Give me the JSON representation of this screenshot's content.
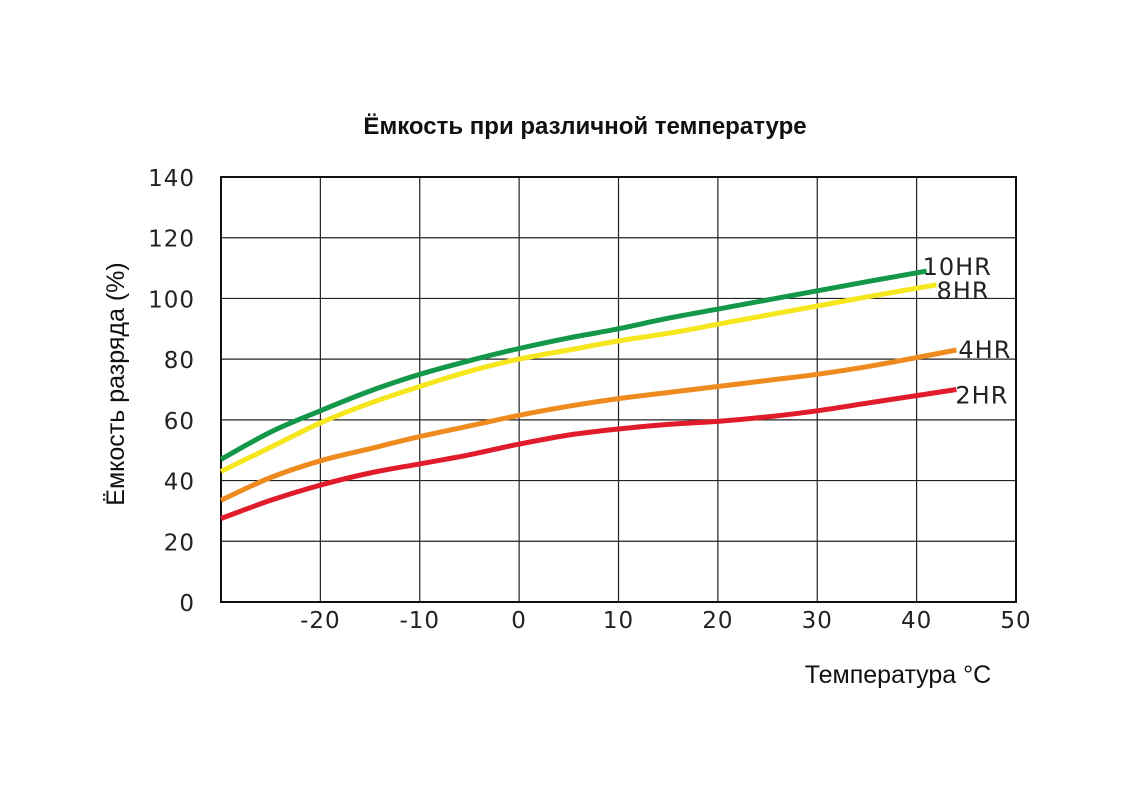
{
  "chart_data": {
    "type": "line",
    "title": "Ёмкость при различной температуре",
    "xlabel": "Температура °C",
    "ylabel": "Ёмкость разряда (%)",
    "xlim": [
      -30,
      50
    ],
    "ylim": [
      0,
      140
    ],
    "x_ticks": [
      -20,
      -10,
      0,
      10,
      20,
      30,
      40,
      50
    ],
    "y_ticks": [
      0,
      20,
      40,
      60,
      80,
      100,
      120,
      140
    ],
    "x_tick_labels": [
      "-20",
      "-10",
      "0",
      "10",
      "20",
      "30",
      "40",
      "50"
    ],
    "y_tick_labels": [
      "0",
      "20",
      "40",
      "60",
      "80",
      "100",
      "120",
      "140"
    ],
    "grid": true,
    "legend": "labels at line ends",
    "series": [
      {
        "name": "10HR",
        "color": "#13984a",
        "x": [
          -30,
          -25,
          -20,
          -15,
          -10,
          -5,
          0,
          5,
          10,
          15,
          20,
          25,
          30,
          35,
          41
        ],
        "values": [
          47,
          56,
          63,
          69.5,
          75,
          79.5,
          83.5,
          87,
          90,
          93.5,
          96.5,
          99.5,
          102.5,
          105.5,
          109
        ]
      },
      {
        "name": "8HR",
        "color": "#f5e61e",
        "x": [
          -30,
          -25,
          -20,
          -15,
          -10,
          -5,
          0,
          5,
          10,
          15,
          20,
          25,
          30,
          35,
          42
        ],
        "values": [
          43,
          51,
          59,
          65.5,
          71,
          76,
          80,
          83,
          86,
          88.5,
          91.5,
          94.5,
          97.5,
          100.5,
          104.5
        ]
      },
      {
        "name": "4HR",
        "color": "#ef8a1f",
        "x": [
          -30,
          -25,
          -20,
          -15,
          -10,
          -5,
          0,
          5,
          10,
          15,
          20,
          25,
          30,
          35,
          40,
          44
        ],
        "values": [
          33.5,
          41,
          46.5,
          50.5,
          54.5,
          58,
          61.5,
          64.5,
          67,
          69,
          71,
          73,
          75,
          77.5,
          80.5,
          83
        ]
      },
      {
        "name": "2HR",
        "color": "#e01b2a",
        "x": [
          -30,
          -25,
          -20,
          -15,
          -10,
          -5,
          0,
          5,
          10,
          15,
          20,
          25,
          30,
          35,
          40,
          44
        ],
        "values": [
          27.5,
          33.5,
          38.5,
          42.5,
          45.5,
          48.5,
          52,
          55,
          57,
          58.5,
          59.5,
          61,
          63,
          65.5,
          68,
          70
        ]
      }
    ]
  }
}
